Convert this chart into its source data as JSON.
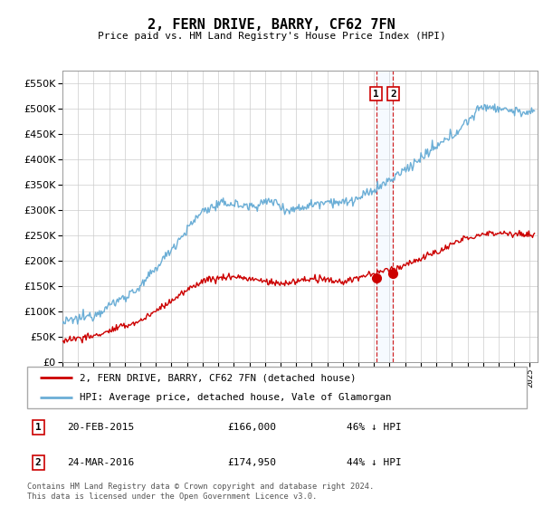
{
  "title": "2, FERN DRIVE, BARRY, CF62 7FN",
  "subtitle": "Price paid vs. HM Land Registry's House Price Index (HPI)",
  "ylim": [
    0,
    575000
  ],
  "yticks": [
    0,
    50000,
    100000,
    150000,
    200000,
    250000,
    300000,
    350000,
    400000,
    450000,
    500000,
    550000
  ],
  "hpi_color": "#6baed6",
  "price_color": "#cc0000",
  "vline_color": "#cc0000",
  "vspan_color": "#ddeeff",
  "transaction1": {
    "date": "20-FEB-2015",
    "price": 166000,
    "label": "1",
    "hpi_pct": "46% ↓ HPI",
    "x_year": 2015.13
  },
  "transaction2": {
    "date": "24-MAR-2016",
    "price": 174950,
    "label": "2",
    "hpi_pct": "44% ↓ HPI",
    "x_year": 2016.23
  },
  "legend_entry1": "2, FERN DRIVE, BARRY, CF62 7FN (detached house)",
  "legend_entry2": "HPI: Average price, detached house, Vale of Glamorgan",
  "footer": "Contains HM Land Registry data © Crown copyright and database right 2024.\nThis data is licensed under the Open Government Licence v3.0.",
  "xmin": 1995.0,
  "xmax": 2025.5
}
